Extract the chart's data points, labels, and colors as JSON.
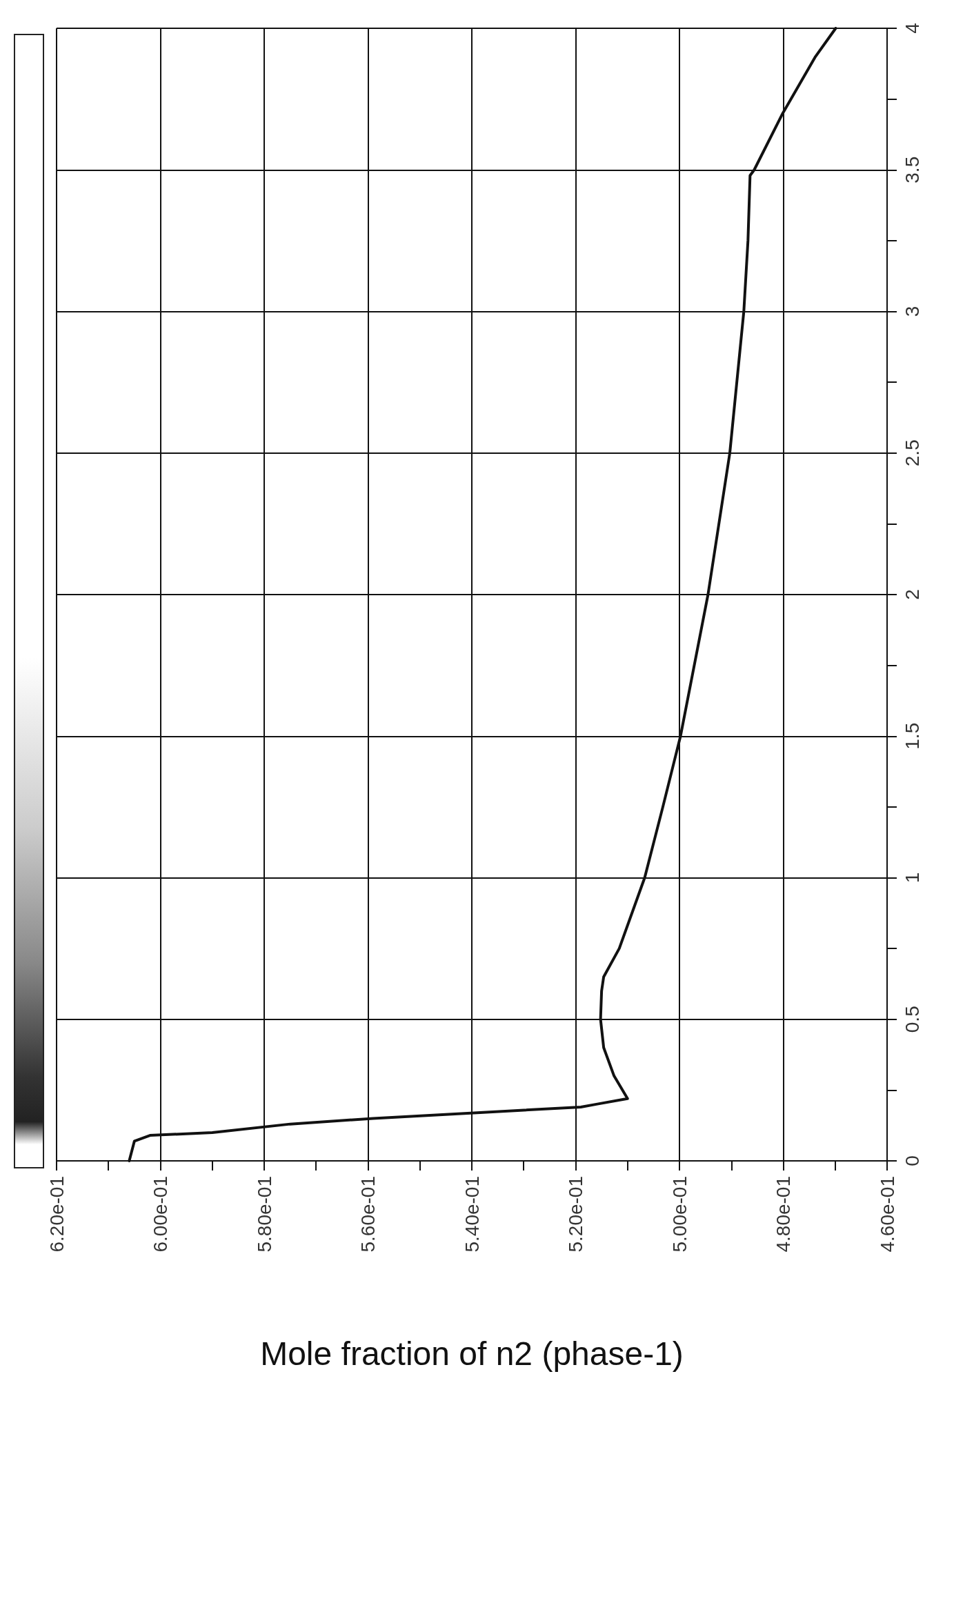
{
  "chart_data": {
    "type": "line",
    "xlabel": "Mole fraction of n2 (phase-1)",
    "ylim": [
      0,
      4
    ],
    "yticks": [
      0,
      0.5,
      1,
      1.5,
      2,
      2.5,
      3,
      3.5,
      4
    ],
    "xlim": [
      0.62,
      0.46
    ],
    "xticks": [
      {
        "value": 0.62,
        "label": "6.20e-01"
      },
      {
        "value": 0.6,
        "label": "6.00e-01"
      },
      {
        "value": 0.58,
        "label": "5.80e-01"
      },
      {
        "value": 0.56,
        "label": "5.60e-01"
      },
      {
        "value": 0.54,
        "label": "5.40e-01"
      },
      {
        "value": 0.52,
        "label": "5.20e-01"
      },
      {
        "value": 0.5,
        "label": "5.00e-01"
      },
      {
        "value": 0.48,
        "label": "4.80e-01"
      },
      {
        "value": 0.46,
        "label": "4.60e-01"
      }
    ],
    "series": [
      {
        "color": "#111111",
        "x": [
          0.606,
          0.605,
          0.602,
          0.59,
          0.575,
          0.559,
          0.539,
          0.519,
          0.516,
          0.51,
          0.5126,
          0.5146,
          0.5152,
          0.515,
          0.5146,
          0.5116,
          0.5067,
          0.5032,
          0.4998,
          0.4945,
          0.4903,
          0.4876,
          0.4868,
          0.4864,
          0.4856,
          0.4801,
          0.4738,
          0.4699
        ],
        "values": [
          0,
          0.07,
          0.09,
          0.1,
          0.13,
          0.15,
          0.17,
          0.19,
          0.2,
          0.22,
          0.3,
          0.4,
          0.5,
          0.6,
          0.65,
          0.75,
          1.0,
          1.25,
          1.5,
          2.0,
          2.5,
          3.0,
          3.25,
          3.48,
          3.5,
          3.7,
          3.9,
          4.0
        ]
      }
    ],
    "grid": true,
    "marker": "none",
    "line_style": "solid"
  }
}
